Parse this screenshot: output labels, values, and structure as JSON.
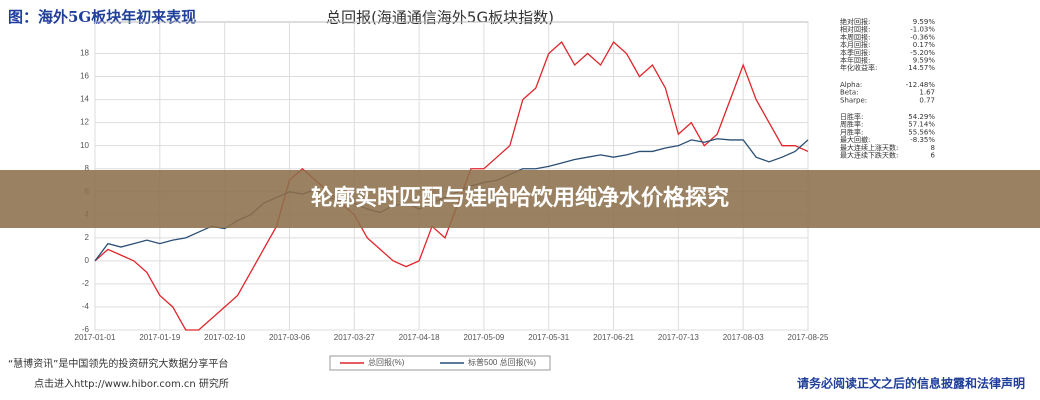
{
  "header": {
    "title": "图：海外5G板块年初来表现"
  },
  "chart_data": {
    "type": "line",
    "title": "总回报(海通通信海外5G板块指数)",
    "categories": [
      "2017-01-01",
      null,
      null,
      null,
      null,
      "2017-01-19",
      null,
      null,
      null,
      null,
      "2017-02-10",
      null,
      null,
      null,
      null,
      "2017-03-06",
      null,
      null,
      null,
      null,
      "2017-03-27",
      null,
      null,
      null,
      null,
      "2017-04-18",
      null,
      null,
      null,
      null,
      "2017-05-09",
      null,
      null,
      null,
      null,
      "2017-05-31",
      null,
      null,
      null,
      null,
      "2017-06-21",
      null,
      null,
      null,
      null,
      "2017-07-13",
      null,
      null,
      null,
      null,
      "2017-08-03",
      null,
      null,
      null,
      null,
      "2017-08-25"
    ],
    "series": [
      {
        "name": "总回报(%)",
        "color": "#e0262b",
        "values": [
          0,
          1,
          0.5,
          0,
          -1,
          -3,
          -4,
          -6,
          -6,
          -5,
          -4,
          -3,
          -1,
          1,
          3,
          7,
          8,
          7,
          6,
          5,
          4,
          2,
          1,
          0,
          -0.5,
          0,
          3,
          2,
          5,
          8,
          8,
          9,
          10,
          14,
          15,
          18,
          19,
          17,
          18,
          17,
          19,
          18,
          16,
          17,
          15,
          11,
          12,
          10,
          11,
          14,
          17,
          14,
          12,
          10,
          10,
          9.5
        ]
      },
      {
        "name": "标普500 总回报(%)",
        "color": "#2a4f74",
        "values": [
          0,
          1.5,
          1.2,
          1.5,
          1.8,
          1.5,
          1.8,
          2,
          2.5,
          3,
          2.8,
          3.5,
          4,
          5,
          5.5,
          6,
          5.8,
          6.2,
          5.5,
          5.2,
          5,
          4.5,
          4.2,
          4.8,
          5,
          4.5,
          5,
          5.5,
          6,
          6.5,
          6.8,
          7,
          7.5,
          8,
          8,
          8.2,
          8.5,
          8.8,
          9,
          9.2,
          9,
          9.2,
          9.5,
          9.5,
          9.8,
          10,
          10.5,
          10.3,
          10.6,
          10.5,
          10.5,
          9,
          8.6,
          9,
          9.5,
          10.5
        ]
      }
    ],
    "ylim": [
      -6,
      19
    ],
    "yticks": [
      -6,
      -4,
      -2,
      0,
      2,
      4,
      6,
      8,
      10,
      12,
      14,
      16,
      18
    ],
    "grid": true
  },
  "stats": [
    [
      "绝对回报:",
      "9.59%"
    ],
    [
      "相对回报:",
      "-1.03%"
    ],
    [
      "本周回报:",
      "-0.36%"
    ],
    [
      "本月回报:",
      "0.17%"
    ],
    [
      "本季回报:",
      "-5.20%"
    ],
    [
      "本年回报:",
      "9.59%"
    ],
    [
      "年化收益率:",
      "14.57%"
    ],
    [
      "Alpha:",
      "-12.48%"
    ],
    [
      "Beta:",
      "1.67"
    ],
    [
      "Sharpe:",
      "0.77"
    ],
    [
      "日胜率:",
      "54.29%"
    ],
    [
      "周胜率:",
      "57.14%"
    ],
    [
      "月胜率:",
      "55.56%"
    ],
    [
      "最大回撤:",
      "-8.35%"
    ],
    [
      "最大连续上涨天数:",
      "8"
    ],
    [
      "最大连续下跌天数:",
      "6"
    ]
  ],
  "banner": "轮廓实时匹配与娃哈哈饮用纯净水价格探究",
  "footer": {
    "left1": "“慧博资讯”是中国领先的投资研究大数据分享平台",
    "left2": "点击进入http://www.hibor.com.cn 研究所",
    "right": "请务必阅读正文之后的信息披露和法律声明"
  }
}
